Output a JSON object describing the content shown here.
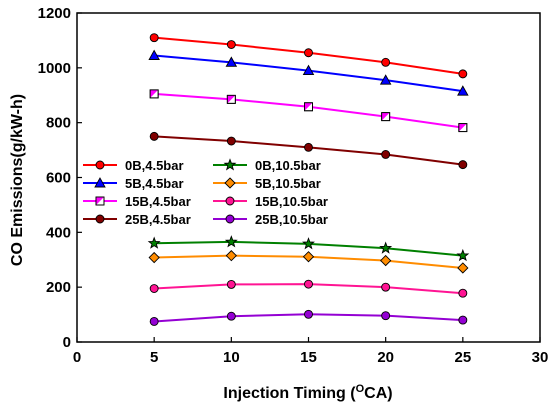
{
  "chart_data": {
    "type": "line",
    "xlabel": "Injection Timing (",
    "xlabel_sup": "O",
    "xlabel_suffix": "CA)",
    "ylabel": "CO Emissions(g/kW-h)",
    "xlim": [
      0,
      30
    ],
    "ylim": [
      0,
      1200
    ],
    "xticks": [
      0,
      5,
      10,
      15,
      20,
      25,
      30
    ],
    "yticks": [
      0,
      200,
      400,
      600,
      800,
      1000,
      1200
    ],
    "grid": false,
    "legend_position": "center-left",
    "x": [
      5,
      10,
      15,
      20,
      25
    ],
    "series": [
      {
        "name": "0B,4.5bar",
        "color": "#ff0000",
        "marker": "circle",
        "values": [
          1110,
          1085,
          1055,
          1020,
          978
        ]
      },
      {
        "name": "5B,4.5bar",
        "color": "#0000ff",
        "marker": "triangle",
        "values": [
          1045,
          1020,
          990,
          955,
          915
        ]
      },
      {
        "name": "15B,4.5bar",
        "color": "#ff00ff",
        "marker": "square-half",
        "values": [
          905,
          885,
          858,
          822,
          782
        ]
      },
      {
        "name": "25B,4.5bar",
        "color": "#800000",
        "marker": "circle",
        "values": [
          750,
          733,
          710,
          684,
          647
        ]
      },
      {
        "name": "0B,10.5bar",
        "color": "#008000",
        "marker": "star",
        "values": [
          360,
          365,
          358,
          342,
          315
        ]
      },
      {
        "name": "5B,10.5bar",
        "color": "#ff8c00",
        "marker": "diamond",
        "values": [
          308,
          315,
          311,
          297,
          270
        ]
      },
      {
        "name": "15B,10.5bar",
        "color": "#ff1493",
        "marker": "circle",
        "values": [
          195,
          210,
          211,
          200,
          178
        ]
      },
      {
        "name": "25B,10.5bar",
        "color": "#9400d3",
        "marker": "circle",
        "values": [
          75,
          94,
          101,
          96,
          80
        ]
      }
    ]
  }
}
